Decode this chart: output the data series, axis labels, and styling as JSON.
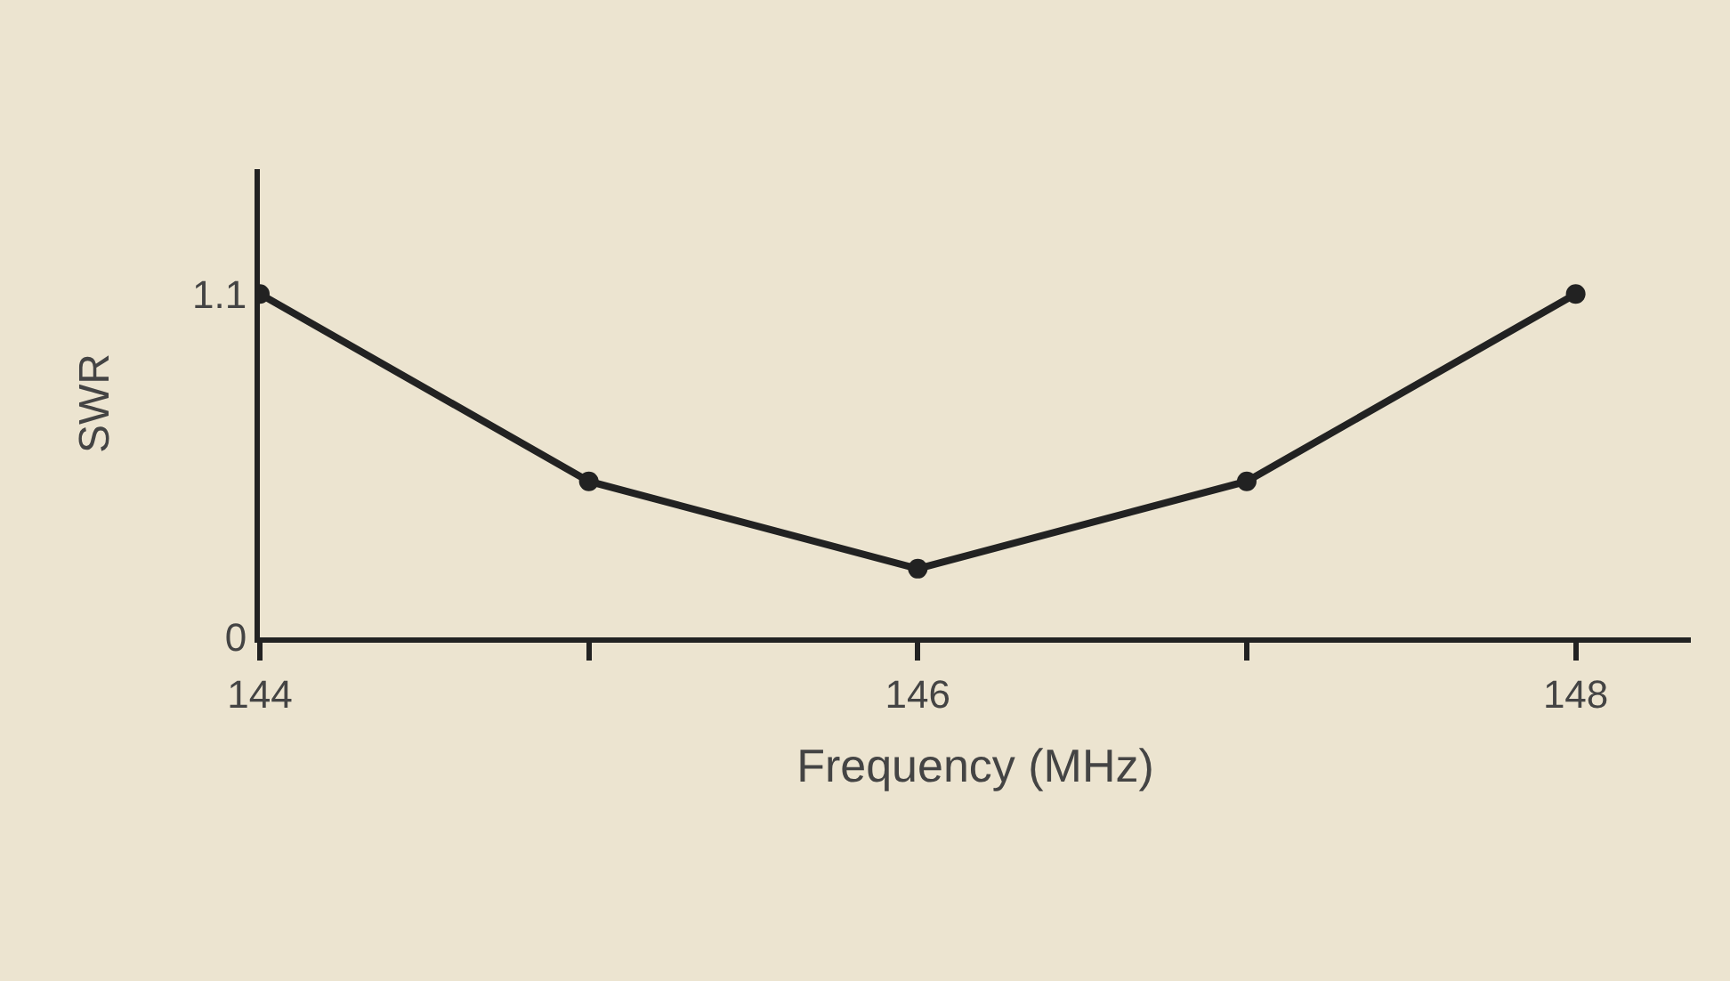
{
  "chart_data": {
    "type": "line",
    "xlabel": "Frequency (MHz)",
    "ylabel": "SWR",
    "x": [
      144,
      145,
      146,
      147,
      148
    ],
    "series": [
      {
        "color": "#222222",
        "values": [
          1.1,
          0.5,
          0.22,
          0.5,
          1.1
        ]
      }
    ],
    "xlim": [
      144,
      148.35
    ],
    "ylim": [
      0,
      1.5
    ],
    "xticks": [
      144,
      {
        "value": 145,
        "label": null
      },
      146,
      {
        "value": 147,
        "label": null
      },
      148
    ],
    "yticks": [
      0,
      1.1
    ],
    "grid": false,
    "legend": false,
    "marker": "circle",
    "line_style": "solid"
  }
}
